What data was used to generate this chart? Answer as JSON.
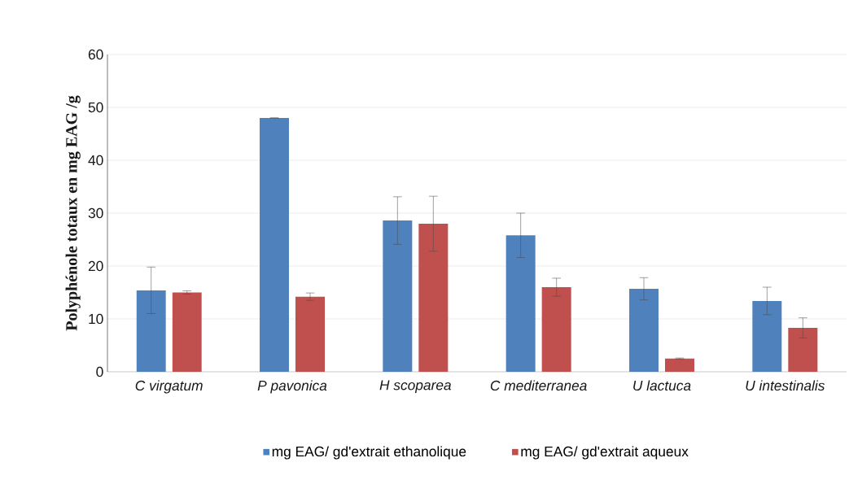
{
  "chart_data": {
    "type": "bar",
    "ylabel": "Polyphénole totaux en mg EAG /g",
    "categories": [
      "C virgatum",
      "P pavonica",
      "H scoparea",
      "C mediterranea",
      "U lactuca",
      "U intestinalis"
    ],
    "series": [
      {
        "name": "mg EAG/ gd'extrait ethanolique",
        "color": "#4f81bd",
        "values": [
          15.4,
          48.0,
          28.6,
          25.8,
          15.7,
          13.4
        ],
        "errors": [
          4.4,
          0,
          4.5,
          4.2,
          2.1,
          2.6
        ]
      },
      {
        "name": "mg EAG/ gd'extrait aqueux",
        "color": "#c0504d",
        "values": [
          15.0,
          14.2,
          28.0,
          16.0,
          2.5,
          8.3
        ],
        "errors": [
          0.3,
          0.7,
          5.2,
          1.7,
          0.1,
          1.9
        ]
      }
    ],
    "ylim": [
      0,
      60
    ],
    "yticks": [
      0,
      10,
      20,
      30,
      40,
      50,
      60
    ],
    "grid": "y",
    "legend": "bottom"
  }
}
